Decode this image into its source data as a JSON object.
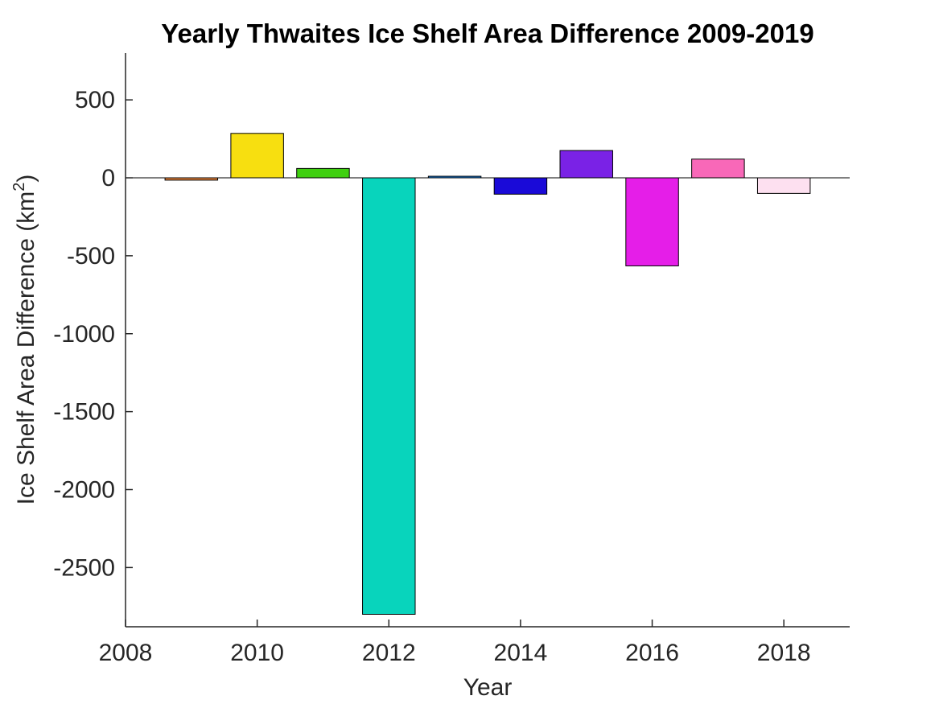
{
  "chart_data": {
    "type": "bar",
    "title": "Yearly Thwaites Ice Shelf Area Difference 2009-2019",
    "xlabel": "Year",
    "ylabel_main": "Ice Shelf Area Difference (km",
    "ylabel_sup": "2",
    "ylabel_end": ")",
    "xlim": [
      2008,
      2019
    ],
    "ylim": [
      -2880,
      800
    ],
    "xticks": [
      2008,
      2010,
      2012,
      2014,
      2016,
      2018
    ],
    "yticks": [
      500,
      0,
      -500,
      -1000,
      -1500,
      -2000,
      -2500
    ],
    "x": [
      2009,
      2010,
      2011,
      2012,
      2013,
      2014,
      2015,
      2016,
      2017,
      2018
    ],
    "values": [
      -15,
      285,
      60,
      -2800,
      10,
      -105,
      175,
      -565,
      120,
      -100
    ],
    "colors": [
      "#e8833a",
      "#f7df10",
      "#3fd010",
      "#08d4bc",
      "#1880e0",
      "#1a0ad8",
      "#7a22e6",
      "#e51ee8",
      "#f868b8",
      "#fde0f0"
    ],
    "grid": false
  }
}
